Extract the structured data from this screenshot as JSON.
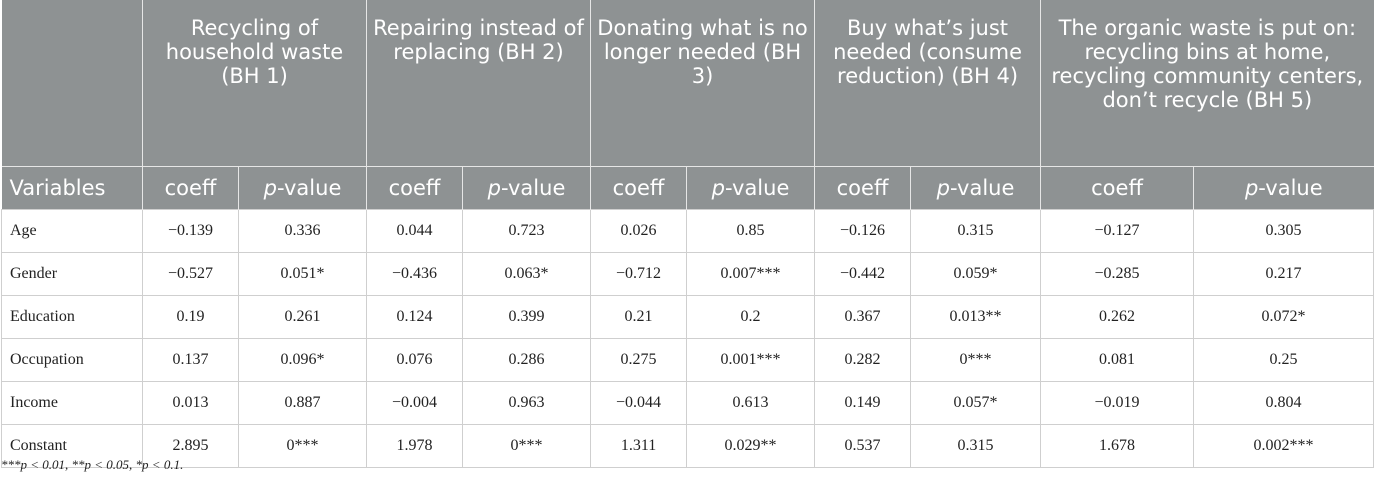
{
  "table": {
    "group_headers": [
      "Recycling of household waste (BH 1)",
      "Repairing instead of replacing (BH 2)",
      "Donating what is no longer needed (BH 3)",
      "Buy what’s just needed (consume reduction) (BH 4)",
      "The organic waste is put on: recycling bins at home, recycling community centers, don’t recycle (BH 5)"
    ],
    "column_headers": [
      [
        {
          "text": "Variables"
        }
      ],
      [
        {
          "text": "coeff"
        }
      ],
      [
        {
          "text": "p",
          "italic": true
        },
        {
          "text": "-value"
        }
      ],
      [
        {
          "text": "coeff"
        }
      ],
      [
        {
          "text": "p",
          "italic": true
        },
        {
          "text": "-value"
        }
      ],
      [
        {
          "text": "coeff"
        }
      ],
      [
        {
          "text": "p",
          "italic": true
        },
        {
          "text": "-value"
        }
      ],
      [
        {
          "text": "coeff"
        }
      ],
      [
        {
          "text": "p",
          "italic": true
        },
        {
          "text": "-value"
        }
      ],
      [
        {
          "text": "coeff"
        }
      ],
      [
        {
          "text": "p",
          "italic": true
        },
        {
          "text": "-value"
        }
      ]
    ],
    "rows": [
      [
        "Age",
        "−0.139",
        "0.336",
        "0.044",
        "0.723",
        "0.026",
        "0.85",
        "−0.126",
        "0.315",
        "−0.127",
        "0.305"
      ],
      [
        "Gender",
        "−0.527",
        "0.051*",
        "−0.436",
        "0.063*",
        "−0.712",
        "0.007***",
        "−0.442",
        "0.059*",
        "−0.285",
        "0.217"
      ],
      [
        "Education",
        "0.19",
        "0.261",
        "0.124",
        "0.399",
        "0.21",
        "0.2",
        "0.367",
        "0.013**",
        "0.262",
        "0.072*"
      ],
      [
        "Occupation",
        "0.137",
        "0.096*",
        "0.076",
        "0.286",
        "0.275",
        "0.001***",
        "0.282",
        "0***",
        "0.081",
        "0.25"
      ],
      [
        "Income",
        "0.013",
        "0.887",
        "−0.004",
        "0.963",
        "−0.044",
        "0.613",
        "0.149",
        "0.057*",
        "−0.019",
        "0.804"
      ],
      [
        "Constant",
        "2.895",
        "0***",
        "1.978",
        "0***",
        "1.311",
        "0.029**",
        "0.537",
        "0.315",
        "1.678",
        "0.002***"
      ]
    ],
    "footnote": "***p < 0.01, **p < 0.05, *p < 0.1."
  }
}
